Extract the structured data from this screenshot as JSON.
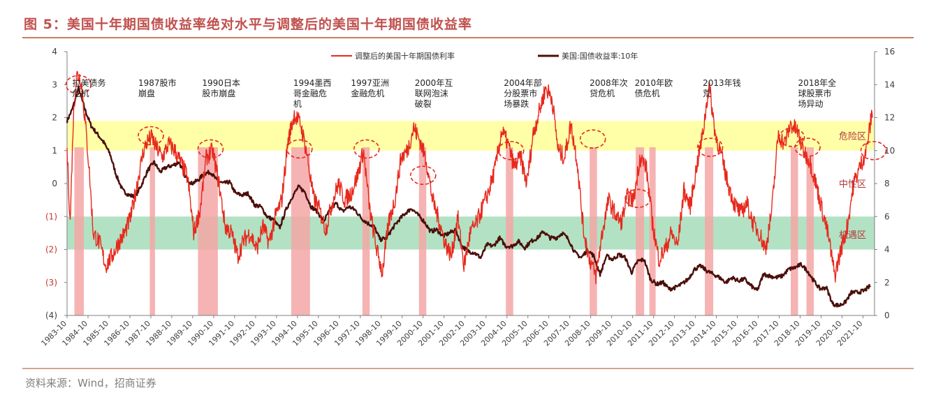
{
  "page": {
    "title": "图 5：美国十年期国债收益率绝对水平与调整后的美国十年期国债收益率",
    "source": "资料来源：Wind，招商证券"
  },
  "colors": {
    "title": "#c0504d",
    "adjusted_series": "#e8281c",
    "yield_series": "#4b0f0a",
    "danger_band": "#ffff99",
    "opportunity_band": "#7fcf9b",
    "event_bar": "#f4a6a6",
    "event_circle": "#e8281c"
  },
  "chart_data": {
    "type": "line",
    "title": "",
    "x_range": [
      1983.75,
      2022.3
    ],
    "x_tick_labels": [
      "1983-10",
      "1984-10",
      "1985-10",
      "1986-10",
      "1987-10",
      "1988-10",
      "1989-10",
      "1990-10",
      "1991-10",
      "1992-10",
      "1993-10",
      "1994-10",
      "1995-10",
      "1996-10",
      "1997-10",
      "1998-10",
      "1999-10",
      "2000-10",
      "2001-10",
      "2002-10",
      "2003-10",
      "2004-10",
      "2005-10",
      "2006-10",
      "2007-10",
      "2008-10",
      "2009-10",
      "2010-10",
      "2011-10",
      "2012-10",
      "2013-10",
      "2014-10",
      "2015-10",
      "2016-10",
      "2017-10",
      "2018-10",
      "2019-10",
      "2020-10",
      "2021-10"
    ],
    "y_left": {
      "range": [
        -4,
        4
      ],
      "tick_labels": [
        "4",
        "3",
        "2",
        "1",
        "0",
        "(1)",
        "(2)",
        "(3)",
        "(4)"
      ],
      "tick_colors": [
        "#404040",
        "#404040",
        "#404040",
        "#404040",
        "#404040",
        "#c0392b",
        "#c0392b",
        "#c0392b",
        "#404040"
      ]
    },
    "y_right": {
      "range": [
        0,
        16
      ],
      "tick_labels": [
        "16",
        "14",
        "12",
        "10",
        "8",
        "6",
        "4",
        "2",
        "0"
      ]
    },
    "bands": [
      {
        "label": "危险区",
        "y_left_range": [
          1.0,
          1.9
        ],
        "color": "#ffff99"
      },
      {
        "label": "中性区",
        "y_left_range": null,
        "label_at_y_left": 0.0,
        "color": null
      },
      {
        "label": "机遇区",
        "y_left_range": [
          -2.0,
          -1.0
        ],
        "color": "#7fcf9b"
      }
    ],
    "legend": {
      "position": "top-center",
      "entries": [
        {
          "name": "调整后的美国十年期国债利率",
          "axis": "left",
          "color": "#e8281c"
        },
        {
          "name": "美国:国债收益率:10年",
          "axis": "right",
          "color": "#4b0f0a"
        }
      ]
    },
    "events": [
      {
        "label": "拉美债务危机",
        "text_x": 1984.0,
        "bar": [
          1984.1,
          1984.55
        ]
      },
      {
        "label": "1987股市崩盘",
        "text_x": 1987.15,
        "bar": [
          1987.7,
          1987.95
        ]
      },
      {
        "label": "1990日本股市崩盘",
        "text_x": 1990.2,
        "bar": [
          1990.0,
          1990.95
        ]
      },
      {
        "label": "1994墨西哥金融危机",
        "text_x": 1994.55,
        "bar": [
          1994.45,
          1995.35
        ]
      },
      {
        "label": "1997亚洲金融危机",
        "text_x": 1997.3,
        "bar": [
          1997.85,
          1998.2
        ]
      },
      {
        "label": "2000年互联网泡沫破裂",
        "text_x": 2000.35,
        "bar": [
          2000.55,
          2000.9
        ]
      },
      {
        "label": "2004年部分股票市场暴跌",
        "text_x": 2004.6,
        "bar": [
          2004.7,
          2005.05
        ]
      },
      {
        "label": "2008年次贷危机",
        "text_x": 2008.7,
        "bar": [
          2008.7,
          2009.05
        ]
      },
      {
        "label": "2010年欧债危机",
        "text_x": 2010.85,
        "bar": [
          2010.9,
          2011.3
        ]
      },
      {
        "label": "2013年钱荒",
        "text_x": 2014.1,
        "bar": [
          2014.2,
          2014.6
        ]
      },
      {
        "label": "2018年全球股票市场异动",
        "text_x": 2018.65,
        "bar": [
          2018.3,
          2018.65
        ]
      },
      {
        "label": "",
        "text_x": null,
        "bar": [
          2019.05,
          2019.4
        ]
      },
      {
        "label": "",
        "text_x": null,
        "bar": [
          2011.55,
          2011.85
        ]
      }
    ],
    "highlight_circles": [
      {
        "x": 1984.3,
        "y_left": 3.0
      },
      {
        "x": 1987.75,
        "y_left": 1.45
      },
      {
        "x": 1990.6,
        "y_left": 1.05
      },
      {
        "x": 1994.85,
        "y_left": 1.05
      },
      {
        "x": 1998.05,
        "y_left": 1.05
      },
      {
        "x": 2000.75,
        "y_left": 0.25
      },
      {
        "x": 2004.95,
        "y_left": 1.0
      },
      {
        "x": 2008.85,
        "y_left": 1.35
      },
      {
        "x": 2011.0,
        "y_left": -0.45
      },
      {
        "x": 2014.45,
        "y_left": 1.1
      },
      {
        "x": 2018.35,
        "y_left": 1.4
      },
      {
        "x": 2019.1,
        "y_left": 1.1
      },
      {
        "x": 2022.25,
        "y_left": 1.0
      }
    ],
    "series": [
      {
        "name": "调整后的美国十年期国债利率",
        "axis": "left",
        "x": [
          1983.75,
          1983.9,
          1984.05,
          1984.2,
          1984.4,
          1984.6,
          1984.8,
          1985.0,
          1985.3,
          1985.6,
          1985.9,
          1986.2,
          1986.5,
          1986.8,
          1987.1,
          1987.4,
          1987.6,
          1987.8,
          1988.0,
          1988.3,
          1988.6,
          1988.9,
          1989.2,
          1989.5,
          1989.8,
          1990.1,
          1990.4,
          1990.7,
          1991.0,
          1991.3,
          1991.6,
          1991.9,
          1992.2,
          1992.5,
          1992.8,
          1993.1,
          1993.4,
          1993.7,
          1994.0,
          1994.3,
          1994.6,
          1994.9,
          1995.2,
          1995.5,
          1995.8,
          1996.1,
          1996.4,
          1996.7,
          1997.0,
          1997.3,
          1997.6,
          1997.9,
          1998.2,
          1998.5,
          1998.8,
          1999.1,
          1999.4,
          1999.7,
          2000.0,
          2000.3,
          2000.6,
          2000.9,
          2001.2,
          2001.5,
          2001.8,
          2002.1,
          2002.4,
          2002.7,
          2003.0,
          2003.3,
          2003.6,
          2003.9,
          2004.2,
          2004.5,
          2004.8,
          2005.1,
          2005.4,
          2005.7,
          2006.0,
          2006.3,
          2006.6,
          2006.9,
          2007.2,
          2007.5,
          2007.8,
          2008.1,
          2008.4,
          2008.7,
          2009.0,
          2009.3,
          2009.6,
          2009.9,
          2010.2,
          2010.5,
          2010.8,
          2011.1,
          2011.4,
          2011.7,
          2012.0,
          2012.3,
          2012.6,
          2012.9,
          2013.2,
          2013.5,
          2013.8,
          2014.1,
          2014.4,
          2014.7,
          2015.0,
          2015.3,
          2015.6,
          2015.9,
          2016.2,
          2016.5,
          2016.8,
          2017.1,
          2017.4,
          2017.7,
          2018.0,
          2018.3,
          2018.6,
          2018.9,
          2019.2,
          2019.5,
          2019.8,
          2020.1,
          2020.4,
          2020.7,
          2021.0,
          2021.3,
          2021.6,
          2021.9,
          2022.2
        ],
        "values": [
          1.0,
          -1.2,
          2.0,
          3.3,
          3.2,
          2.0,
          0.5,
          -1.5,
          -1.8,
          -2.5,
          -2.2,
          -1.8,
          -1.5,
          -1.0,
          0.0,
          1.0,
          1.3,
          1.4,
          1.1,
          0.8,
          1.2,
          1.0,
          0.6,
          0.2,
          -1.5,
          -0.8,
          0.8,
          1.0,
          0.0,
          -1.3,
          -1.5,
          -2.2,
          -1.7,
          -1.5,
          -2.0,
          -1.3,
          -1.8,
          -1.0,
          -0.5,
          1.3,
          2.1,
          1.8,
          0.9,
          -0.4,
          -0.8,
          -1.4,
          -0.6,
          0.0,
          -0.5,
          -0.3,
          0.2,
          1.0,
          -0.8,
          -1.9,
          -2.7,
          -1.2,
          -0.5,
          0.8,
          1.0,
          1.7,
          1.3,
          0.7,
          -0.5,
          -1.1,
          -1.8,
          -2.2,
          -1.0,
          -2.5,
          -1.5,
          -1.2,
          -0.7,
          -0.2,
          0.5,
          1.6,
          1.2,
          0.5,
          0.8,
          0.0,
          1.5,
          2.2,
          2.9,
          2.6,
          1.0,
          0.8,
          1.8,
          0.7,
          -1.4,
          -2.3,
          -2.8,
          -1.5,
          -0.5,
          -0.9,
          -1.2,
          -0.4,
          -0.5,
          0.8,
          0.5,
          -1.2,
          -2.3,
          -2.0,
          -1.5,
          -1.9,
          -0.2,
          -0.7,
          0.5,
          1.5,
          3.0,
          1.5,
          0.8,
          0.0,
          -0.6,
          -0.9,
          -0.6,
          -1.2,
          -1.5,
          -2.0,
          -0.8,
          1.5,
          1.2,
          1.8,
          1.6,
          1.0,
          0.7,
          0.0,
          -0.8,
          -1.6,
          -2.8,
          -2.0,
          -1.3,
          0.0,
          0.5,
          1.0,
          2.2
        ]
      },
      {
        "name": "美国:国债收益率:10年",
        "axis": "right",
        "x": [
          1983.75,
          1984.0,
          1984.3,
          1984.6,
          1984.9,
          1985.2,
          1985.5,
          1985.8,
          1986.1,
          1986.4,
          1986.7,
          1987.0,
          1987.3,
          1987.6,
          1987.9,
          1988.2,
          1988.5,
          1988.8,
          1989.1,
          1989.4,
          1989.7,
          1990.0,
          1990.3,
          1990.6,
          1990.9,
          1991.2,
          1991.5,
          1991.8,
          1992.1,
          1992.4,
          1992.7,
          1993.0,
          1993.3,
          1993.6,
          1993.9,
          1994.2,
          1994.5,
          1994.8,
          1995.1,
          1995.4,
          1995.7,
          1996.0,
          1996.3,
          1996.6,
          1996.9,
          1997.2,
          1997.5,
          1997.8,
          1998.1,
          1998.4,
          1998.7,
          1999.0,
          1999.3,
          1999.6,
          1999.9,
          2000.2,
          2000.5,
          2000.8,
          2001.1,
          2001.4,
          2001.7,
          2002.0,
          2002.3,
          2002.6,
          2002.9,
          2003.2,
          2003.5,
          2003.8,
          2004.1,
          2004.4,
          2004.7,
          2005.0,
          2005.3,
          2005.6,
          2005.9,
          2006.2,
          2006.5,
          2006.8,
          2007.1,
          2007.4,
          2007.7,
          2008.0,
          2008.3,
          2008.6,
          2008.9,
          2009.2,
          2009.5,
          2009.8,
          2010.1,
          2010.4,
          2010.7,
          2011.0,
          2011.3,
          2011.6,
          2011.9,
          2012.2,
          2012.5,
          2012.8,
          2013.1,
          2013.4,
          2013.7,
          2014.0,
          2014.3,
          2014.6,
          2014.9,
          2015.2,
          2015.5,
          2015.8,
          2016.1,
          2016.4,
          2016.7,
          2017.0,
          2017.3,
          2017.6,
          2017.9,
          2018.2,
          2018.5,
          2018.8,
          2019.1,
          2019.4,
          2019.7,
          2020.0,
          2020.3,
          2020.6,
          2020.9,
          2021.2,
          2021.5,
          2021.8,
          2022.1
        ],
        "values": [
          11.8,
          12.5,
          13.8,
          12.5,
          11.5,
          11.0,
          10.5,
          9.8,
          8.5,
          7.6,
          7.3,
          7.2,
          7.9,
          8.8,
          9.3,
          8.7,
          9.0,
          9.1,
          9.3,
          8.4,
          8.0,
          8.2,
          8.6,
          8.7,
          8.2,
          8.0,
          8.1,
          7.4,
          7.3,
          7.4,
          6.7,
          6.6,
          6.0,
          5.8,
          5.3,
          6.4,
          7.2,
          7.8,
          7.5,
          6.6,
          6.3,
          5.7,
          6.4,
          6.8,
          6.3,
          6.6,
          6.4,
          5.9,
          5.6,
          5.4,
          4.6,
          4.7,
          5.3,
          5.8,
          6.2,
          6.5,
          6.1,
          5.7,
          5.1,
          5.2,
          4.8,
          5.0,
          5.2,
          4.2,
          3.9,
          3.8,
          3.5,
          4.3,
          4.2,
          4.7,
          4.2,
          4.2,
          4.5,
          4.1,
          4.5,
          4.7,
          5.1,
          4.7,
          4.7,
          5.0,
          4.6,
          3.8,
          3.5,
          4.0,
          3.6,
          2.5,
          3.6,
          3.4,
          3.7,
          3.5,
          2.6,
          3.3,
          3.4,
          2.2,
          1.9,
          2.0,
          1.6,
          1.7,
          1.9,
          2.2,
          2.8,
          3.0,
          2.7,
          2.5,
          2.3,
          2.0,
          2.3,
          2.1,
          2.2,
          1.8,
          1.5,
          2.5,
          2.4,
          2.3,
          2.4,
          2.8,
          2.9,
          3.1,
          2.7,
          2.1,
          1.6,
          1.7,
          0.7,
          0.6,
          0.8,
          1.4,
          1.4,
          1.5,
          1.8
        ]
      }
    ]
  }
}
